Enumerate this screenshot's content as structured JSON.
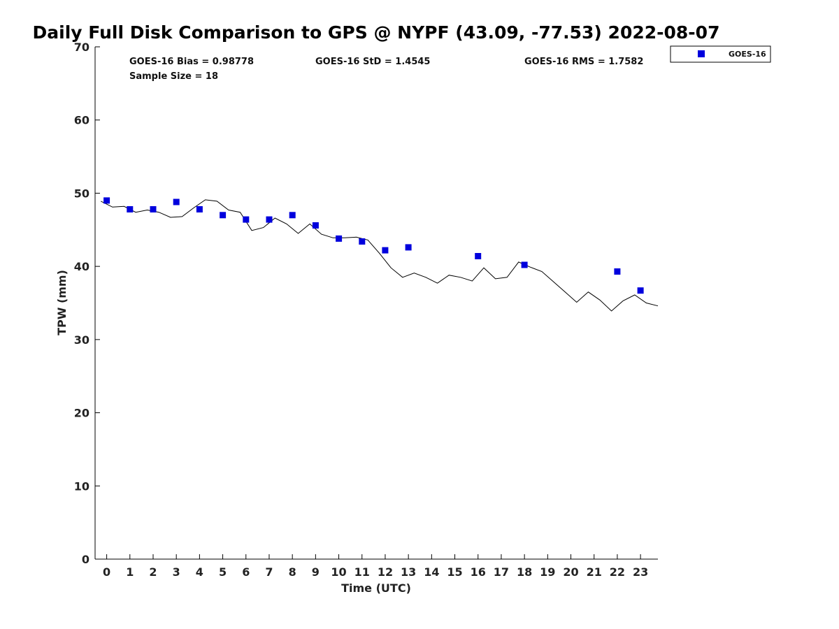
{
  "chart_data": {
    "type": "scatter",
    "title": "Daily Full Disk Comparison to GPS @ NYPF (43.09, -77.53) 2022-08-07",
    "xlabel": "Time (UTC)",
    "ylabel": "TPW (mm)",
    "xlim": [
      -0.5,
      23.75
    ],
    "ylim": [
      0,
      70
    ],
    "xticks": [
      0,
      1,
      2,
      3,
      4,
      5,
      6,
      7,
      8,
      9,
      10,
      11,
      12,
      13,
      14,
      15,
      16,
      17,
      18,
      19,
      20,
      21,
      22,
      23
    ],
    "yticks": [
      0,
      10,
      20,
      30,
      40,
      50,
      60,
      70
    ],
    "grid": false,
    "legend_position": "top-right",
    "stats": {
      "bias": "GOES-16 Bias = 0.98778",
      "std": "GOES-16 StD = 1.4545",
      "rms": "GOES-16 RMS = 1.7582",
      "sample_size": "Sample Size = 18"
    },
    "series": [
      {
        "name": "GOES-16",
        "kind": "scatter",
        "marker": "square",
        "color": "#0000dd",
        "x": [
          0,
          1,
          2,
          3,
          4,
          5,
          6,
          7,
          8,
          9,
          10,
          11,
          12,
          13,
          16,
          18,
          22,
          23
        ],
        "y": [
          49.0,
          47.8,
          47.8,
          48.8,
          47.8,
          47.0,
          46.4,
          46.4,
          47.0,
          45.6,
          43.8,
          43.4,
          42.2,
          42.6,
          41.4,
          40.2,
          39.3,
          36.7
        ]
      },
      {
        "kind": "line",
        "color": "#000000",
        "x": [
          -0.25,
          0.25,
          0.75,
          1.25,
          1.75,
          2.25,
          2.75,
          3.25,
          3.75,
          4.25,
          4.75,
          5.25,
          5.75,
          6.25,
          6.75,
          7.25,
          7.75,
          8.25,
          8.75,
          9.25,
          9.75,
          10.25,
          10.75,
          11.25,
          11.75,
          12.25,
          12.75,
          13.25,
          13.75,
          14.25,
          14.75,
          15.25,
          15.75,
          16.25,
          16.75,
          17.25,
          17.75,
          18.25,
          18.75,
          19.25,
          19.75,
          20.25,
          20.75,
          21.25,
          21.75,
          22.25,
          22.75,
          23.25,
          23.75
        ],
        "y": [
          48.9,
          48.1,
          48.2,
          47.4,
          47.7,
          47.4,
          46.7,
          46.8,
          48.0,
          49.1,
          48.9,
          47.7,
          47.4,
          44.9,
          45.3,
          46.6,
          45.8,
          44.5,
          45.8,
          44.4,
          43.9,
          43.9,
          44.0,
          43.6,
          41.8,
          39.8,
          38.5,
          39.1,
          38.5,
          37.7,
          38.8,
          38.5,
          38.0,
          39.8,
          38.3,
          38.5,
          40.6,
          39.9,
          39.3,
          37.9,
          36.5,
          35.1,
          36.5,
          35.4,
          33.9,
          35.3,
          36.1,
          35.0,
          34.6
        ]
      }
    ]
  }
}
